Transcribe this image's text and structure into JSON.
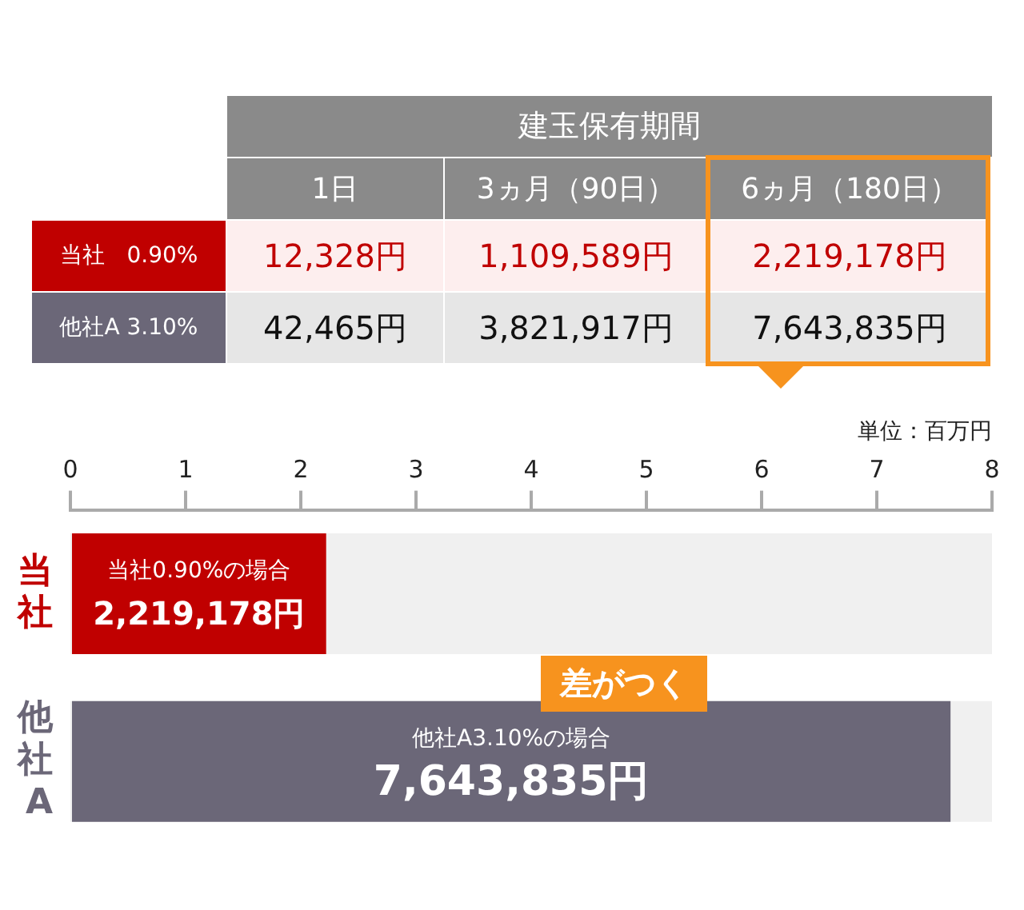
{
  "chart_data": [
    {
      "type": "other",
      "title": "建玉保有期間",
      "categories": [
        "1日",
        "3ヵ月（90日）",
        "6ヵ月（180日）"
      ],
      "y_categories": [
        "当社　0.90%",
        "他社A 3.10%"
      ],
      "cell_labels": [
        [
          "12,328円",
          "1,109,589円",
          "2,219,178円"
        ],
        [
          "42,465円",
          "3,821,917円",
          "7,643,835円"
        ]
      ]
    },
    {
      "type": "bar",
      "orientation": "horizontal",
      "categories": [
        "当社",
        "他社A"
      ],
      "values": [
        2.22,
        7.64
      ],
      "colors": [
        "#c00000",
        "#6b6778"
      ],
      "xlabel": "単位：百万円",
      "xlim": [
        0,
        8
      ],
      "xticks": [
        0,
        1,
        2,
        3,
        4,
        5,
        6,
        7,
        8
      ],
      "annotations": [
        "当社0.90%の場合\n2,219,178円",
        "他社A3.10%の場合\n7,643,835円",
        "差がつく"
      ]
    }
  ]
}
